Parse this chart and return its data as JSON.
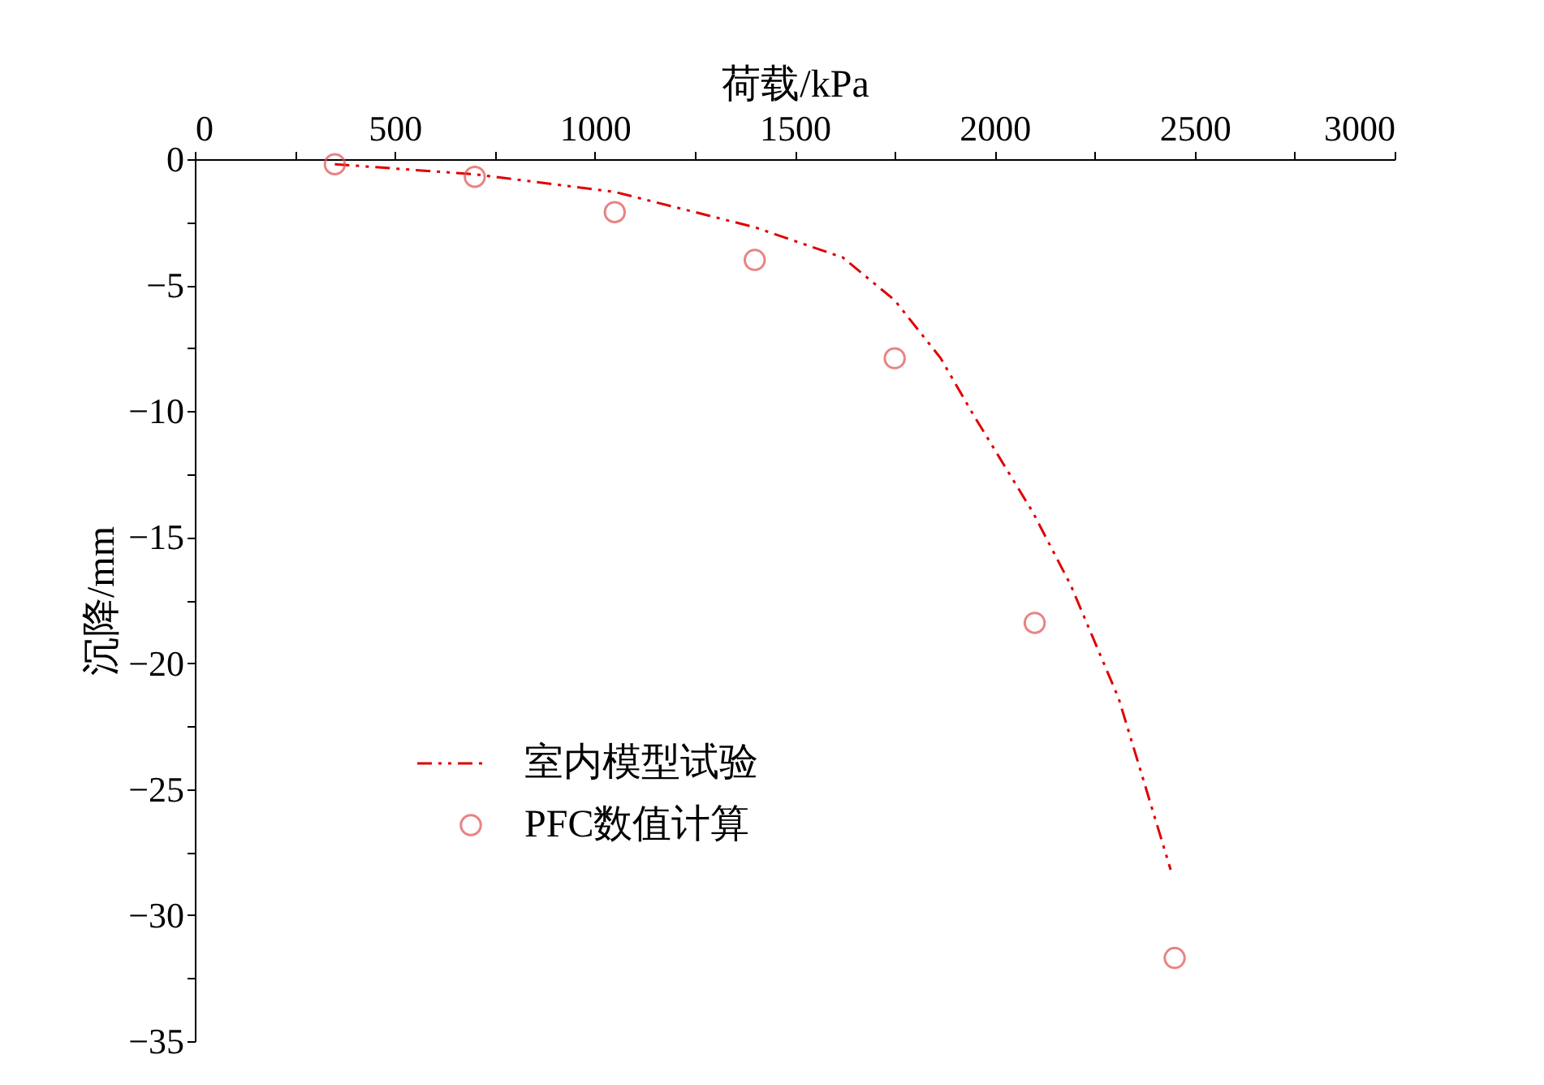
{
  "chart_data": {
    "type": "line",
    "xlabel": "荷载/kPa",
    "ylabel": "沉降/mm",
    "xlim": [
      0,
      3000
    ],
    "ylim": [
      -35,
      0
    ],
    "xticks": [
      0,
      {
        "value": 250,
        "label": null
      },
      500,
      {
        "value": 750,
        "label": null
      },
      1000,
      {
        "value": 1250,
        "label": null
      },
      1500,
      {
        "value": 1750,
        "label": null
      },
      2000,
      {
        "value": 2250,
        "label": null
      },
      2500,
      {
        "value": 2750,
        "label": null
      },
      3000
    ],
    "yticks": [
      0,
      {
        "value": -2.5,
        "label": null
      },
      -5,
      {
        "value": -7.5,
        "label": null
      },
      -10,
      {
        "value": -12.5,
        "label": null
      },
      -15,
      {
        "value": -17.5,
        "label": null
      },
      -20,
      {
        "value": -22.5,
        "label": null
      },
      -25,
      {
        "value": -27.5,
        "label": null
      },
      -30,
      {
        "value": -32.5,
        "label": null
      },
      -35
    ],
    "grid": false,
    "legend": "bottom left",
    "series": [
      {
        "name": "室内模型试验",
        "type": "line",
        "color": "#e00000",
        "line_style": "dashed",
        "marker": "none",
        "x": [
          350,
          700,
          1050,
          1400,
          1620,
          1750,
          1865,
          1945,
          2095,
          2190,
          2310,
          2440
        ],
        "values": [
          -0.2,
          -0.6,
          -1.3,
          -2.7,
          -3.9,
          -5.6,
          -7.9,
          -10.1,
          -14.0,
          -16.9,
          -21.4,
          -28.2
        ]
      },
      {
        "name": "PFC数值计算",
        "type": "scatter",
        "color": "#e05050",
        "marker": "circle",
        "x": [
          350,
          700,
          1050,
          1400,
          1750,
          2100,
          2450
        ],
        "values": [
          -0.2,
          -0.7,
          -2.1,
          -4.0,
          -7.9,
          -18.4,
          -31.7
        ]
      }
    ]
  }
}
